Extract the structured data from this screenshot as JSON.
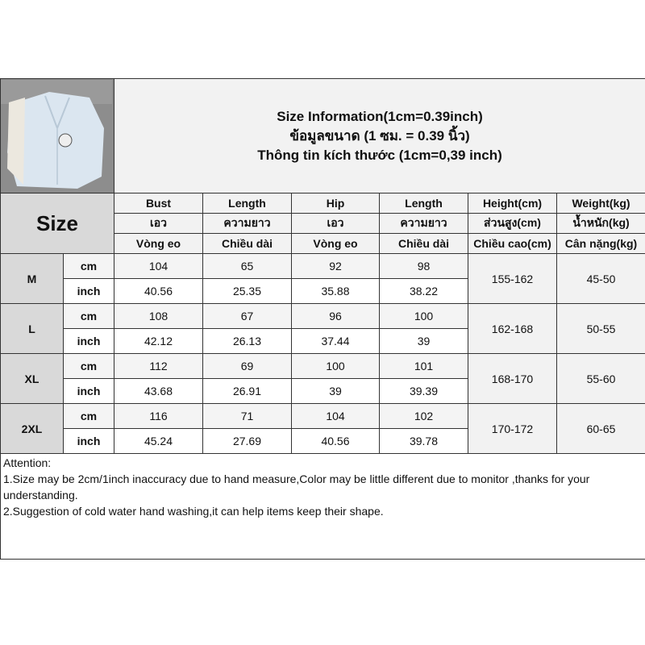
{
  "title": {
    "en": "Size Information(1cm=0.39inch)",
    "th": "ข้อมูลขนาด (1 ซม. = 0.39 นิ้ว)",
    "vi": "Thông tin kích thước (1cm=0,39 inch)"
  },
  "size_label": "Size",
  "headers": [
    [
      "Bust",
      "Length",
      "Hip",
      "Length",
      "Height(cm)",
      "Weight(kg)"
    ],
    [
      "เอว",
      "ความยาว",
      "เอว",
      "ความยาว",
      "ส่วนสูง(cm)",
      "น้ำหนัก(kg)"
    ],
    [
      "Vòng eo",
      "Chiều dài",
      "Vòng eo",
      "Chiều dài",
      "Chiều cao(cm)",
      "Cân nặng(kg)"
    ]
  ],
  "units": {
    "cm": "cm",
    "inch": "inch"
  },
  "rows": [
    {
      "size": "M",
      "cm": [
        "104",
        "65",
        "92",
        "98"
      ],
      "inch": [
        "40.56",
        "25.35",
        "35.88",
        "38.22"
      ],
      "height": "155-162",
      "weight": "45-50"
    },
    {
      "size": "L",
      "cm": [
        "108",
        "67",
        "96",
        "100"
      ],
      "inch": [
        "42.12",
        "26.13",
        "37.44",
        "39"
      ],
      "height": "162-168",
      "weight": "50-55"
    },
    {
      "size": "XL",
      "cm": [
        "112",
        "69",
        "100",
        "101"
      ],
      "inch": [
        "43.68",
        "26.91",
        "39",
        "39.39"
      ],
      "height": "168-170",
      "weight": "55-60"
    },
    {
      "size": "2XL",
      "cm": [
        "116",
        "71",
        "104",
        "102"
      ],
      "inch": [
        "45.24",
        "27.69",
        "40.56",
        "39.78"
      ],
      "height": "170-172",
      "weight": "60-65"
    }
  ],
  "attention": {
    "heading": "Attention:",
    "line1": "1.Size may be 2cm/1inch inaccuracy due to hand measure,Color may be little different due to monitor ,thanks for your understanding.",
    "line2": "2.Suggestion of cold water hand washing,it can help items keep their shape."
  }
}
